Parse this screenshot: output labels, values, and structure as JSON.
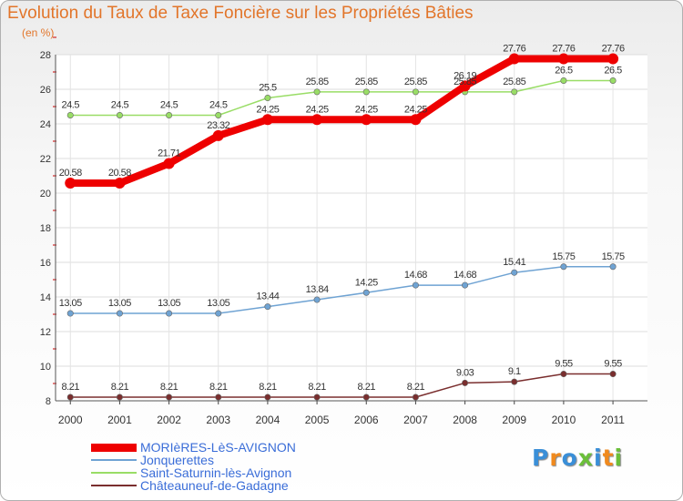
{
  "title": "Evolution du Taux de Taxe Foncière sur les Propriétés Bâties",
  "unit_label": "(en %)",
  "logo_text": "Proxiti",
  "chart_data": {
    "type": "line",
    "categories": [
      "2000",
      "2001",
      "2002",
      "2003",
      "2004",
      "2005",
      "2006",
      "2007",
      "2008",
      "2009",
      "2010",
      "2011"
    ],
    "ylim": [
      8,
      28
    ],
    "y_ticks": [
      "8",
      "10",
      "12",
      "14",
      "16",
      "18",
      "20",
      "22",
      "24",
      "26",
      "28"
    ],
    "grid": true,
    "legend_position": "bottom-left",
    "series": [
      {
        "name": "MORIèRES-LèS-AVIGNON",
        "color": "#ee0000",
        "values": [
          20.58,
          20.58,
          21.71,
          23.32,
          24.25,
          24.25,
          24.25,
          24.25,
          26.19,
          27.76,
          27.76,
          27.76
        ],
        "labels": [
          "20.58",
          "20.58",
          "21.71",
          "23.32",
          "24.25",
          "24.25",
          "24.25",
          "24.25",
          "26.19",
          "27.76",
          "27.76",
          "27.76"
        ]
      },
      {
        "name": "Jonquerettes",
        "color": "#6fa3d3",
        "values": [
          13.05,
          13.05,
          13.05,
          13.05,
          13.44,
          13.84,
          14.25,
          14.68,
          14.68,
          15.41,
          15.75,
          15.75
        ],
        "labels": [
          "13.05",
          "13.05",
          "13.05",
          "13.05",
          "13.44",
          "13.84",
          "14.25",
          "14.68",
          "14.68",
          "15.41",
          "15.75",
          "15.75"
        ]
      },
      {
        "name": "Saint-Saturnin-lès-Avignon",
        "color": "#99dd66",
        "values": [
          24.5,
          24.5,
          24.5,
          24.5,
          25.5,
          25.85,
          25.85,
          25.85,
          25.85,
          25.85,
          26.5,
          26.5
        ],
        "labels": [
          "24.5",
          "24.5",
          "24.5",
          "24.5",
          "25.5",
          "25.85",
          "25.85",
          "25.85",
          "25.85",
          "25.85",
          "26.5",
          "26.5"
        ]
      },
      {
        "name": "Châteauneuf-de-Gadagne",
        "color": "#7a2e2e",
        "values": [
          8.21,
          8.21,
          8.21,
          8.21,
          8.21,
          8.21,
          8.21,
          8.21,
          9.03,
          9.1,
          9.55,
          9.55
        ],
        "labels": [
          "8.21",
          "8.21",
          "8.21",
          "8.21",
          "8.21",
          "8.21",
          "8.21",
          "8.21",
          "9.03",
          "9.1",
          "9.55",
          "9.55"
        ]
      }
    ]
  }
}
